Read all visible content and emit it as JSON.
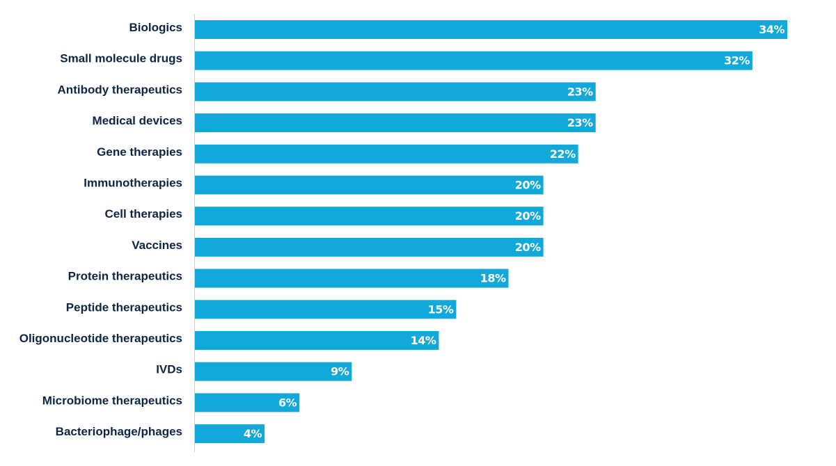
{
  "colors": {
    "bar": "#13a8da",
    "label_text": "#0b2545",
    "value_text": "#ffffff",
    "axis_line": "#cfcfcf"
  },
  "chart_data": {
    "type": "bar",
    "orientation": "horizontal",
    "title": "",
    "xlabel": "",
    "ylabel": "",
    "grid": false,
    "legend": "none",
    "value_suffix": "%",
    "xlim": [
      0,
      34
    ],
    "categories": [
      "Biologics",
      "Small molecule drugs",
      "Antibody therapeutics",
      "Medical devices",
      "Gene therapies",
      "Immunotherapies",
      "Cell therapies",
      "Vaccines",
      "Protein therapeutics",
      "Peptide therapeutics",
      "Oligonucleotide therapeutics",
      "IVDs",
      "Microbiome therapeutics",
      "Bacteriophage/phages"
    ],
    "values": [
      34,
      32,
      23,
      23,
      22,
      20,
      20,
      20,
      18,
      15,
      14,
      9,
      6,
      4
    ],
    "data_labels": [
      "34%",
      "32%",
      "23%",
      "23%",
      "22%",
      "20%",
      "20%",
      "20%",
      "18%",
      "15%",
      "14%",
      "9%",
      "6%",
      "4%"
    ]
  }
}
